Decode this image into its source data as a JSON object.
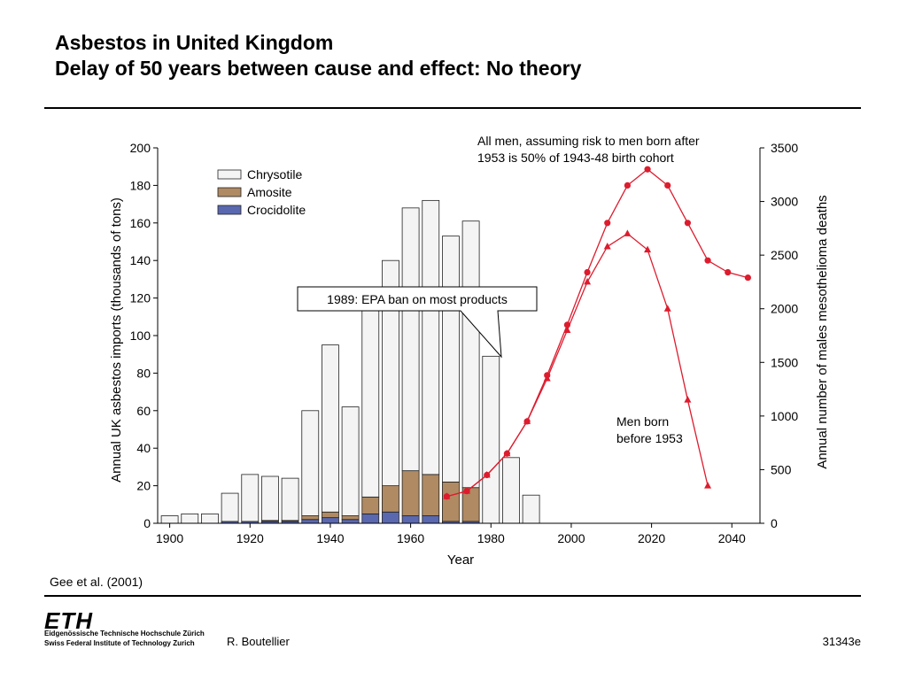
{
  "header": {
    "title_line1": "Asbestos in United Kingdom",
    "title_line2": "Delay of 50 years between cause and effect: No theory"
  },
  "footer": {
    "citation": "Gee et al. (2001)",
    "logo": "ETH",
    "institution_line1": "Eidgenössische Technische Hochschule Zürich",
    "institution_line2": "Swiss Federal Institute of Technology Zurich",
    "author": "R. Boutellier",
    "doc_number": "31343e"
  },
  "colors": {
    "chrysotile": "#f4f4f4",
    "amosite": "#b08a62",
    "crocidolite": "#5a68b0",
    "deaths": "#dd1c2e"
  },
  "chart_data": {
    "type": "bar",
    "xlabel": "Year",
    "ylabel_left": "Annual UK asbestos imports (thousands of tons)",
    "ylabel_right": "Annual number of males mesothelioma deaths",
    "xlim": [
      1897,
      2047
    ],
    "ylim_left": [
      0,
      200
    ],
    "ylim_right": [
      0,
      3500
    ],
    "x_ticks": [
      1900,
      1920,
      1940,
      1960,
      1980,
      2000,
      2020,
      2040
    ],
    "y_ticks_left": [
      0,
      20,
      40,
      60,
      80,
      100,
      120,
      140,
      160,
      180,
      200
    ],
    "y_ticks_right": [
      0,
      500,
      1000,
      1500,
      2000,
      2500,
      3000,
      3500
    ],
    "legend": [
      "Chrysotile",
      "Amosite",
      "Crocidolite"
    ],
    "bars": [
      {
        "year": 1900,
        "chrysotile": 4,
        "amosite": 0,
        "crocidolite": 0
      },
      {
        "year": 1905,
        "chrysotile": 5,
        "amosite": 0,
        "crocidolite": 0
      },
      {
        "year": 1910,
        "chrysotile": 5,
        "amosite": 0,
        "crocidolite": 0
      },
      {
        "year": 1915,
        "chrysotile": 15,
        "amosite": 0,
        "crocidolite": 1
      },
      {
        "year": 1920,
        "chrysotile": 25,
        "amosite": 0,
        "crocidolite": 1
      },
      {
        "year": 1925,
        "chrysotile": 23.5,
        "amosite": 0.5,
        "crocidolite": 1
      },
      {
        "year": 1930,
        "chrysotile": 22.5,
        "amosite": 0.5,
        "crocidolite": 1
      },
      {
        "year": 1935,
        "chrysotile": 56,
        "amosite": 2,
        "crocidolite": 2
      },
      {
        "year": 1940,
        "chrysotile": 89,
        "amosite": 3,
        "crocidolite": 3
      },
      {
        "year": 1945,
        "chrysotile": 58,
        "amosite": 2,
        "crocidolite": 2
      },
      {
        "year": 1950,
        "chrysotile": 106,
        "amosite": 9,
        "crocidolite": 5
      },
      {
        "year": 1955,
        "chrysotile": 120,
        "amosite": 14,
        "crocidolite": 6
      },
      {
        "year": 1960,
        "chrysotile": 140,
        "amosite": 24,
        "crocidolite": 4
      },
      {
        "year": 1965,
        "chrysotile": 146,
        "amosite": 22,
        "crocidolite": 4
      },
      {
        "year": 1970,
        "chrysotile": 131,
        "amosite": 21,
        "crocidolite": 1
      },
      {
        "year": 1975,
        "chrysotile": 142,
        "amosite": 18,
        "crocidolite": 1
      },
      {
        "year": 1980,
        "chrysotile": 89,
        "amosite": 0,
        "crocidolite": 0
      },
      {
        "year": 1985,
        "chrysotile": 35,
        "amosite": 0,
        "crocidolite": 0
      },
      {
        "year": 1990,
        "chrysotile": 15,
        "amosite": 0,
        "crocidolite": 0
      }
    ],
    "series": [
      {
        "name": "All men, assuming risk to men born after 1953 is 50% of 1943-48 birth cohort",
        "marker": "circle",
        "x": [
          1969,
          1974,
          1979,
          1984,
          1989,
          1994,
          1999,
          2004,
          2009,
          2014,
          2019,
          2024,
          2029,
          2034,
          2039,
          2044
        ],
        "y": [
          250,
          300,
          450,
          650,
          950,
          1380,
          1850,
          2340,
          2800,
          3150,
          3300,
          3150,
          2800,
          2450,
          2340,
          2290
        ]
      },
      {
        "name": "Men born before 1953",
        "marker": "triangle",
        "x": [
          1969,
          1974,
          1979,
          1984,
          1989,
          1994,
          1999,
          2004,
          2009,
          2014,
          2019,
          2024,
          2029,
          2034
        ],
        "y": [
          250,
          300,
          450,
          650,
          950,
          1350,
          1800,
          2250,
          2580,
          2700,
          2550,
          2000,
          1150,
          350
        ]
      }
    ],
    "annotations": {
      "all_men_line1": "All men, assuming risk to men born after",
      "all_men_line2": "1953 is 50% of 1943-48 birth cohort",
      "men_born_line1": "Men born",
      "men_born_line2": "before 1953",
      "callout": "1989: EPA ban on most products"
    }
  }
}
